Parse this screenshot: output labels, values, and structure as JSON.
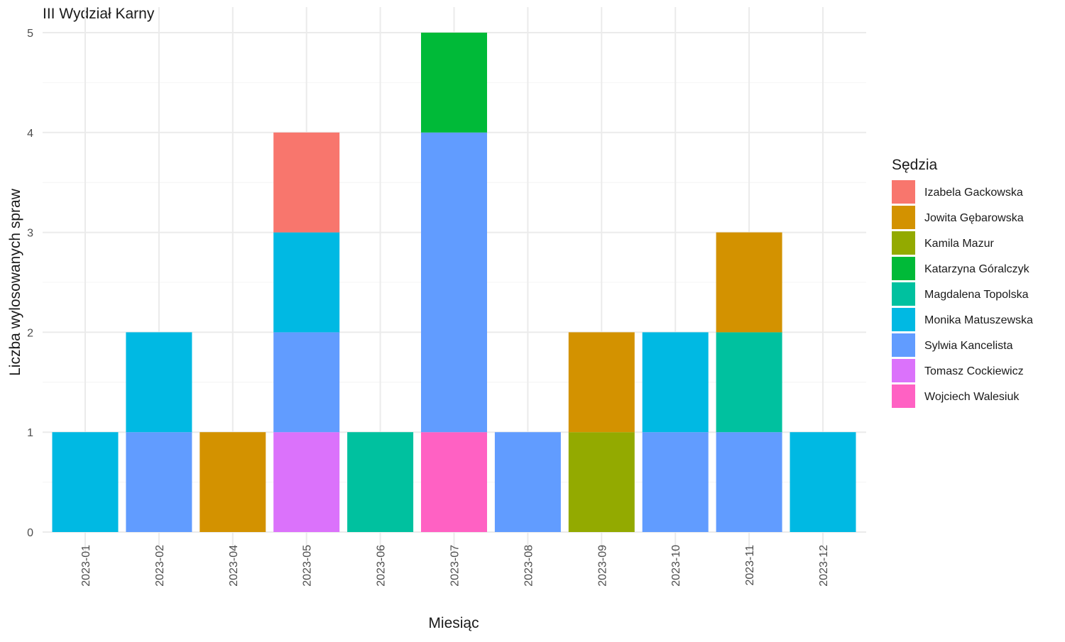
{
  "chart_data": {
    "type": "bar",
    "stacked": true,
    "title": "III Wydział Karny",
    "xlabel": "Miesiąc",
    "ylabel": "Liczba wylosowanych spraw",
    "ylim": [
      0,
      5
    ],
    "yticks": [
      "0",
      "1",
      "2",
      "3",
      "4",
      "5"
    ],
    "grid": true,
    "legend_title": "Sędzia",
    "legend_position": "right",
    "categories": [
      "2023-01",
      "2023-02",
      "2023-04",
      "2023-05",
      "2023-06",
      "2023-07",
      "2023-08",
      "2023-09",
      "2023-10",
      "2023-11",
      "2023-12"
    ],
    "series": [
      {
        "name": "Izabela Gackowska",
        "color": "#F8766D",
        "values": [
          0,
          0,
          0,
          1,
          0,
          0,
          0,
          0,
          0,
          0,
          0
        ]
      },
      {
        "name": "Jowita Gębarowska",
        "color": "#D39200",
        "values": [
          0,
          0,
          1,
          0,
          0,
          0,
          0,
          1,
          0,
          1,
          0
        ]
      },
      {
        "name": "Kamila Mazur",
        "color": "#93AA00",
        "values": [
          0,
          0,
          0,
          0,
          0,
          0,
          0,
          1,
          0,
          0,
          0
        ]
      },
      {
        "name": "Katarzyna Góralczyk",
        "color": "#00BA38",
        "values": [
          0,
          0,
          0,
          0,
          0,
          1,
          0,
          0,
          0,
          0,
          0
        ]
      },
      {
        "name": "Magdalena Topolska",
        "color": "#00C19F",
        "values": [
          0,
          0,
          0,
          0,
          1,
          0,
          0,
          0,
          0,
          1,
          0
        ]
      },
      {
        "name": "Monika Matuszewska",
        "color": "#00B9E3",
        "values": [
          1,
          1,
          0,
          1,
          0,
          0,
          0,
          0,
          1,
          0,
          1
        ]
      },
      {
        "name": "Sylwia Kancelista",
        "color": "#619CFF",
        "values": [
          0,
          1,
          0,
          1,
          0,
          3,
          1,
          0,
          1,
          1,
          0
        ]
      },
      {
        "name": "Tomasz Cockiewicz",
        "color": "#DB72FB",
        "values": [
          0,
          0,
          0,
          1,
          0,
          0,
          0,
          0,
          0,
          0,
          0
        ]
      },
      {
        "name": "Wojciech Walesiuk",
        "color": "#FF61C3",
        "values": [
          0,
          0,
          0,
          0,
          0,
          1,
          0,
          0,
          0,
          0,
          0
        ]
      }
    ]
  }
}
